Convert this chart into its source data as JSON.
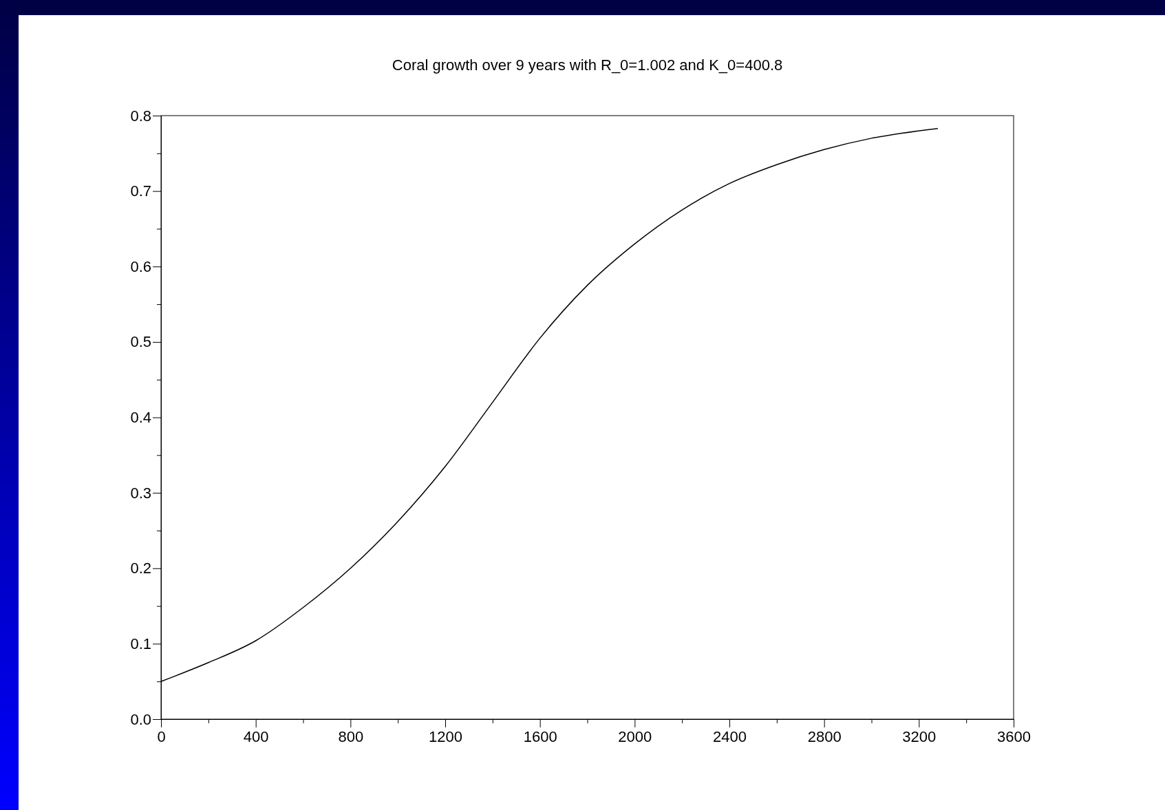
{
  "chart_data": {
    "type": "line",
    "title": "Coral growth over 9 years with R_0=1.002 and K_0=400.8",
    "x": [
      0,
      200,
      400,
      600,
      800,
      1000,
      1200,
      1400,
      1600,
      1800,
      2000,
      2200,
      2400,
      2600,
      2800,
      3000,
      3280
    ],
    "series": [
      {
        "color": "#000000",
        "values": [
          0.05,
          0.075,
          0.104,
          0.148,
          0.2,
          0.262,
          0.335,
          0.42,
          0.505,
          0.575,
          0.63,
          0.675,
          0.71,
          0.735,
          0.755,
          0.77,
          0.783
        ]
      }
    ],
    "xlim": [
      0,
      3600
    ],
    "xticks": [
      0,
      {
        "value": 200,
        "label": null
      },
      400,
      {
        "value": 600,
        "label": null
      },
      800,
      {
        "value": 1000,
        "label": null
      },
      1200,
      {
        "value": 1400,
        "label": null
      },
      1600,
      {
        "value": 1800,
        "label": null
      },
      2000,
      {
        "value": 2200,
        "label": null
      },
      2400,
      {
        "value": 2600,
        "label": null
      },
      2800,
      {
        "value": 3000,
        "label": null
      },
      3200,
      {
        "value": 3400,
        "label": null
      },
      3600
    ],
    "ylim": [
      0,
      0.8
    ],
    "yticks": [
      {
        "value": 0,
        "label": "0.0"
      },
      {
        "value": 0.05,
        "label": null
      },
      0.1,
      {
        "value": 0.15,
        "label": null
      },
      0.2,
      {
        "value": 0.25,
        "label": null
      },
      0.3,
      {
        "value": 0.35,
        "label": null
      },
      0.4,
      {
        "value": 0.45,
        "label": null
      },
      0.5,
      {
        "value": 0.55,
        "label": null
      },
      0.6,
      {
        "value": 0.65,
        "label": null
      },
      0.7,
      {
        "value": 0.75,
        "label": null
      },
      0.8
    ],
    "grid": false,
    "marker": "none",
    "line_style": "solid"
  }
}
